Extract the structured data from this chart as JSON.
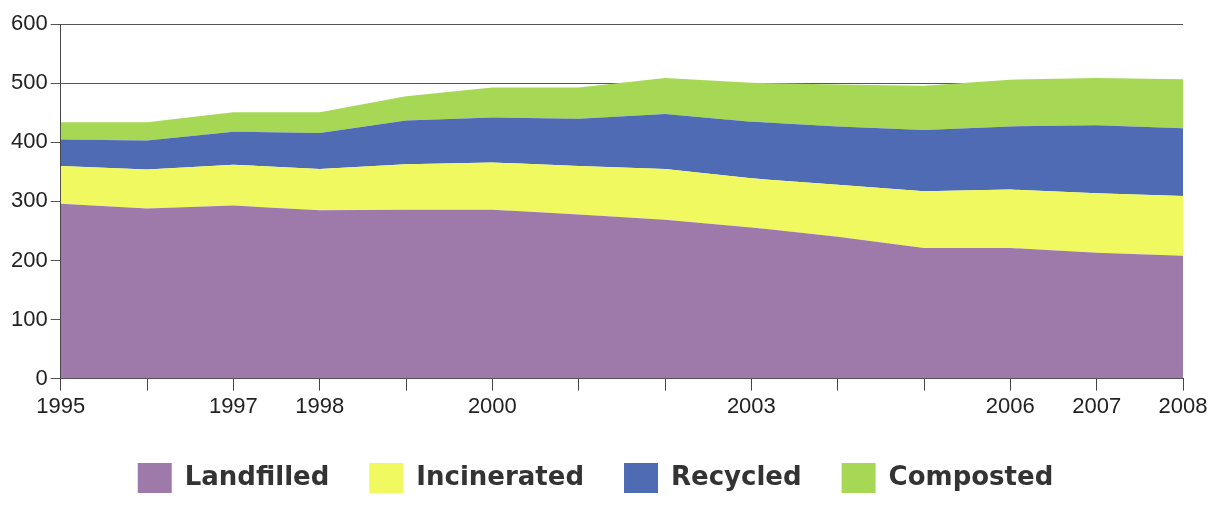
{
  "chart_data": {
    "type": "area",
    "stacked": true,
    "x": [
      1995,
      1996,
      1997,
      1998,
      1999,
      2000,
      2001,
      2002,
      2003,
      2004,
      2005,
      2006,
      2007,
      2008
    ],
    "xlim": [
      1995,
      2008
    ],
    "xticks": [
      1995,
      {
        "value": 1996,
        "label": null
      },
      1997,
      1998,
      {
        "value": 1999,
        "label": null
      },
      2000,
      {
        "value": 2001,
        "label": null
      },
      {
        "value": 2002,
        "label": null
      },
      2003,
      {
        "value": 2004,
        "label": null
      },
      {
        "value": 2005,
        "label": null
      },
      2006,
      2007,
      2008
    ],
    "ylim": [
      0,
      600
    ],
    "yticks": [
      0,
      100,
      200,
      300,
      400,
      500,
      600
    ],
    "grid": "y",
    "legend": "bottom",
    "series": [
      {
        "name": "Landfilled",
        "color": "#9e7aab",
        "values": [
          296,
          288,
          293,
          285,
          286,
          286,
          278,
          269,
          256,
          240,
          221,
          221,
          213,
          208
        ]
      },
      {
        "name": "Incinerated",
        "color": "#f0fa60",
        "values": [
          64,
          66,
          69,
          70,
          77,
          80,
          82,
          86,
          83,
          88,
          96,
          99,
          101,
          101
        ]
      },
      {
        "name": "Recycled",
        "color": "#4e6bb3",
        "values": [
          45,
          49,
          56,
          61,
          74,
          76,
          80,
          93,
          96,
          99,
          104,
          107,
          115,
          115
        ]
      },
      {
        "name": "Composted",
        "color": "#a6d856",
        "values": [
          29,
          31,
          33,
          35,
          41,
          51,
          53,
          61,
          66,
          71,
          75,
          79,
          80,
          83
        ]
      }
    ]
  }
}
